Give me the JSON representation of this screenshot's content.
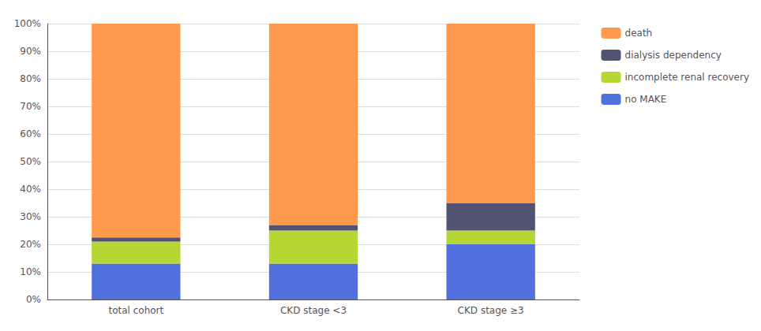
{
  "chart_data": {
    "type": "bar",
    "stacked": true,
    "categories": [
      "total cohort",
      "CKD stage <3",
      "CKD stage ≥3"
    ],
    "series": [
      {
        "name": "no MAKE",
        "values": [
          13,
          13,
          20
        ]
      },
      {
        "name": "incomplete renal recovery",
        "values": [
          8,
          12,
          5
        ]
      },
      {
        "name": "dialysis dependency",
        "values": [
          1.5,
          2,
          10
        ]
      },
      {
        "name": "death",
        "values": [
          77.5,
          73,
          65
        ]
      }
    ],
    "ylim": [
      0,
      100
    ],
    "yticks": [
      {
        "value": 0,
        "label": "0%"
      },
      {
        "value": 10,
        "label": "10%"
      },
      {
        "value": 20,
        "label": "20%"
      },
      {
        "value": 30,
        "label": "30%"
      },
      {
        "value": 40,
        "label": "40%"
      },
      {
        "value": 50,
        "label": "50%"
      },
      {
        "value": 60,
        "label": "60%"
      },
      {
        "value": 70,
        "label": "70%"
      },
      {
        "value": 80,
        "label": "80%"
      },
      {
        "value": 90,
        "label": "90%"
      },
      {
        "value": 100,
        "label": "100%"
      }
    ],
    "grid": true,
    "legend": "upper right"
  }
}
